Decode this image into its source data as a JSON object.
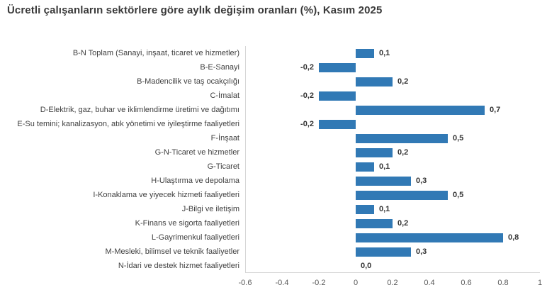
{
  "title": "Ücretli çalışanların sektörlere göre aylık değişim oranları (%), Kasım 2025",
  "colors": {
    "bar": "#3179B5",
    "title_text": "#3A3A3A",
    "category_text": "#404040",
    "value_text": "#333333",
    "tick_text": "#595959",
    "axis_line": "#D6D6D6",
    "background": "#FFFFFF"
  },
  "chart_data": {
    "type": "bar",
    "orientation": "horizontal",
    "title": "Ücretli çalışanların sektörlere göre aylık değişim oranları (%), Kasım 2025",
    "categories": [
      "B-N Toplam (Sanayi, inşaat, ticaret ve hizmetler)",
      "B-E-Sanayi",
      "B-Madencilik ve taş ocakçılığı",
      "C-İmalat",
      "D-Elektrik, gaz, buhar ve iklimlendirme üretimi ve dağıtımı",
      "E-Su temini; kanalizasyon, atık yönetimi ve iyileştirme faaliyetleri",
      "F-İnşaat",
      "G-N-Ticaret ve hizmetler",
      "G-Ticaret",
      "H-Ulaştırma ve depolama",
      "I-Konaklama ve yiyecek hizmeti faaliyetleri",
      "J-Bilgi ve iletişim",
      "K-Finans ve sigorta faaliyetleri",
      "L-Gayrimenkul faaliyetleri",
      "M-Mesleki, bilimsel ve teknik faaliyetler",
      "N-İdari ve destek hizmet faaliyetleri"
    ],
    "values": [
      0.1,
      -0.2,
      0.2,
      -0.2,
      0.7,
      -0.2,
      0.5,
      0.2,
      0.1,
      0.3,
      0.5,
      0.1,
      0.2,
      0.8,
      0.3,
      0.0
    ],
    "value_labels": [
      "0,1",
      "-0,2",
      "0,2",
      "-0,2",
      "0,7",
      "-0,2",
      "0,5",
      "0,2",
      "0,1",
      "0,3",
      "0,5",
      "0,1",
      "0,2",
      "0,8",
      "0,3",
      "0,0"
    ],
    "xlabel": "",
    "ylabel": "",
    "xlim": [
      -0.6,
      1
    ],
    "x_tick_values": [
      -0.6,
      -0.4,
      -0.2,
      0,
      0.2,
      0.4,
      0.6,
      0.8,
      1
    ],
    "x_tick_labels": [
      "-0.6",
      "-0.4",
      "-0.2",
      "0",
      "0.2",
      "0.4",
      "0.6",
      "0.8",
      "1"
    ],
    "grid": false,
    "legend": "none"
  }
}
